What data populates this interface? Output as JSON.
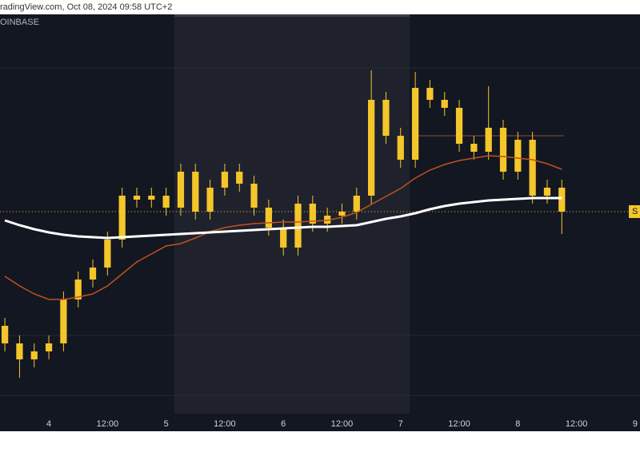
{
  "header": {
    "text": "radingView.com, Oct 08, 2024 09:58 UTC+2",
    "source": "OINBASE"
  },
  "chart_data": {
    "type": "candlestick",
    "x": [
      -9,
      -6,
      -3,
      0,
      3,
      6,
      9,
      12,
      15,
      18,
      21,
      24,
      27,
      30,
      33,
      36,
      39,
      42,
      45,
      48,
      51,
      54,
      57,
      60,
      63,
      66,
      69,
      72,
      75,
      78,
      81,
      84,
      87,
      90,
      93,
      96,
      99,
      102,
      105
    ],
    "open": [
      110,
      88,
      68,
      78,
      88,
      143,
      168,
      183,
      218,
      273,
      268,
      273,
      258,
      303,
      253,
      283,
      303,
      288,
      258,
      233,
      208,
      263,
      238,
      248,
      253,
      273,
      393,
      348,
      318,
      408,
      393,
      383,
      338,
      328,
      358,
      303,
      343,
      273,
      283
    ],
    "high": [
      120,
      98,
      88,
      98,
      153,
      178,
      193,
      228,
      283,
      283,
      283,
      283,
      313,
      313,
      293,
      313,
      313,
      298,
      268,
      243,
      273,
      273,
      258,
      263,
      283,
      430,
      403,
      358,
      428,
      418,
      403,
      393,
      348,
      410,
      368,
      353,
      353,
      293,
      293
    ],
    "low": [
      78,
      45,
      58,
      68,
      78,
      133,
      158,
      173,
      208,
      258,
      258,
      248,
      248,
      243,
      243,
      273,
      278,
      248,
      223,
      198,
      198,
      228,
      228,
      238,
      243,
      263,
      338,
      308,
      308,
      383,
      373,
      328,
      318,
      318,
      293,
      293,
      263,
      263,
      225
    ],
    "close": [
      88,
      68,
      78,
      88,
      143,
      168,
      183,
      218,
      273,
      268,
      273,
      258,
      303,
      253,
      283,
      303,
      288,
      258,
      233,
      208,
      263,
      238,
      248,
      253,
      273,
      393,
      348,
      318,
      408,
      393,
      383,
      338,
      328,
      358,
      303,
      343,
      273,
      283,
      253
    ],
    "up_color": "#f5c62a",
    "down_color": "#f5c62a",
    "series": [
      {
        "color": "#c0521e",
        "values": [
          172,
          160,
          150,
          143,
          143,
          146,
          150,
          160,
          175,
          190,
          200,
          210,
          213,
          220,
          228,
          233,
          236,
          238,
          239,
          240,
          240,
          241,
          242,
          246,
          252,
          262,
          272,
          282,
          295,
          305,
          312,
          317,
          320,
          323,
          322,
          320,
          318,
          313,
          306
        ]
      },
      {
        "color": "#ffffff",
        "values": [
          242,
          236,
          231,
          227,
          224,
          222,
          221,
          220,
          221,
          222,
          223,
          224,
          225,
          226,
          227,
          228,
          229,
          230,
          231,
          232,
          233,
          234,
          234,
          235,
          236,
          240,
          244,
          247,
          251,
          256,
          260,
          263,
          265,
          267,
          268,
          269,
          270,
          270,
          270
        ]
      }
    ],
    "price_label": "S",
    "xlim": [
      -10,
      121
    ],
    "ylim": [
      0,
      498
    ],
    "xticks": [
      {
        "value": 0,
        "label": "4"
      },
      {
        "value": 12,
        "label": "12:00"
      },
      {
        "value": 24,
        "label": "5"
      },
      {
        "value": 36,
        "label": "12:00"
      },
      {
        "value": 48,
        "label": "6"
      },
      {
        "value": 60,
        "label": "12:00"
      },
      {
        "value": 72,
        "label": "7"
      },
      {
        "value": 84,
        "label": "12:00"
      },
      {
        "value": 96,
        "label": "8"
      },
      {
        "value": 108,
        "label": "12:00"
      },
      {
        "value": 120,
        "label": "9"
      }
    ]
  }
}
